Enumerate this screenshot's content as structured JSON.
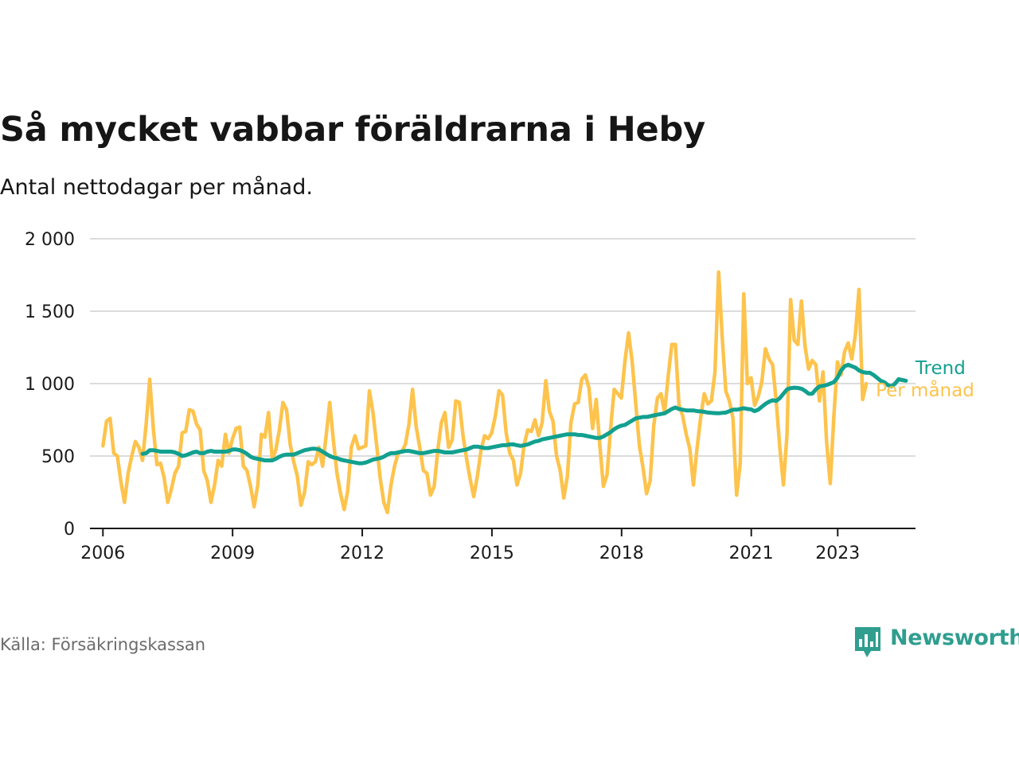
{
  "title": "Så mycket vabbar föräldrarna i Heby",
  "subtitle": "Antal nettodagar per månad.",
  "source": "Källa: Försäkringskassan",
  "brand": {
    "name": "Newsworthy",
    "icon": "newsworthy-chart-bubble-icon",
    "color": "#2f9e8f"
  },
  "colors": {
    "trend": "#12a08f",
    "monthly": "#fdc34c",
    "grid": "#dcdcdc",
    "axis": "#1a1a1a",
    "text": "#1a1a1a"
  },
  "chart_data": {
    "type": "line",
    "title": "Så mycket vabbar föräldrarna i Heby",
    "subtitle": "Antal nettodagar per månad.",
    "xlabel": "",
    "ylabel": "",
    "grid": true,
    "xlim": [
      2005.7,
      2024.8
    ],
    "ylim": [
      0,
      2000
    ],
    "yticks": [
      0,
      500,
      1000,
      1500,
      2000
    ],
    "ytick_labels": [
      "0",
      "500",
      "1 000",
      "1 500",
      "2 000"
    ],
    "xticks": [
      2006,
      2009,
      2012,
      2015,
      2018,
      2021,
      2023
    ],
    "xtick_labels": [
      "2006",
      "2009",
      "2012",
      "2015",
      "2018",
      "2021",
      "2023"
    ],
    "series": [
      {
        "name": "Per månad",
        "label": "Per månad",
        "color": "#fdc34c",
        "start": 2006.0,
        "step": 0.0833,
        "values": [
          570,
          740,
          760,
          520,
          500,
          320,
          180,
          380,
          500,
          600,
          560,
          470,
          720,
          1030,
          690,
          440,
          450,
          350,
          180,
          270,
          380,
          430,
          660,
          670,
          820,
          810,
          720,
          680,
          400,
          330,
          180,
          300,
          470,
          430,
          650,
          520,
          620,
          690,
          700,
          430,
          400,
          290,
          150,
          300,
          650,
          630,
          800,
          480,
          540,
          680,
          870,
          820,
          580,
          460,
          360,
          160,
          250,
          460,
          440,
          460,
          560,
          430,
          640,
          870,
          610,
          380,
          240,
          130,
          260,
          560,
          640,
          550,
          560,
          570,
          950,
          800,
          580,
          350,
          180,
          110,
          300,
          430,
          520,
          530,
          580,
          720,
          960,
          700,
          560,
          400,
          380,
          230,
          290,
          540,
          730,
          800,
          560,
          610,
          880,
          870,
          640,
          480,
          340,
          220,
          360,
          540,
          640,
          620,
          660,
          780,
          950,
          920,
          660,
          520,
          470,
          300,
          380,
          580,
          680,
          670,
          750,
          640,
          730,
          1020,
          810,
          740,
          500,
          400,
          210,
          360,
          730,
          860,
          870,
          1030,
          1060,
          970,
          690,
          890,
          580,
          290,
          370,
          690,
          960,
          930,
          900,
          1160,
          1350,
          1150,
          860,
          570,
          420,
          240,
          330,
          710,
          900,
          930,
          800,
          1050,
          1270,
          1270,
          850,
          780,
          650,
          550,
          300,
          550,
          760,
          930,
          860,
          880,
          1080,
          1770,
          1320,
          950,
          880,
          760,
          230,
          450,
          1620,
          1000,
          1040,
          850,
          910,
          1010,
          1240,
          1170,
          1130,
          880,
          560,
          300,
          650,
          1580,
          1300,
          1270,
          1570,
          1260,
          1100,
          1160,
          1130,
          880,
          1080,
          600,
          310,
          770,
          1150,
          1060,
          1220,
          1280,
          1170,
          1340,
          1650,
          890,
          1000
        ]
      },
      {
        "name": "Trend",
        "label": "Trend",
        "color": "#12a08f",
        "start": 2006.917,
        "step": 0.0833,
        "values": [
          515,
          520,
          540,
          540,
          535,
          530,
          530,
          530,
          530,
          525,
          515,
          500,
          505,
          515,
          525,
          530,
          520,
          520,
          530,
          535,
          530,
          530,
          530,
          530,
          535,
          545,
          545,
          540,
          530,
          515,
          495,
          485,
          480,
          475,
          470,
          470,
          470,
          480,
          495,
          505,
          510,
          510,
          510,
          520,
          530,
          540,
          545,
          550,
          550,
          545,
          530,
          515,
          500,
          490,
          485,
          475,
          470,
          465,
          460,
          455,
          450,
          450,
          455,
          465,
          475,
          480,
          485,
          495,
          510,
          520,
          520,
          525,
          530,
          535,
          535,
          530,
          525,
          520,
          520,
          525,
          530,
          535,
          535,
          530,
          525,
          525,
          525,
          530,
          535,
          540,
          545,
          555,
          565,
          565,
          560,
          555,
          555,
          560,
          565,
          570,
          575,
          575,
          580,
          580,
          575,
          570,
          575,
          580,
          590,
          600,
          605,
          615,
          620,
          625,
          630,
          635,
          640,
          645,
          650,
          650,
          650,
          645,
          645,
          640,
          635,
          630,
          625,
          625,
          635,
          650,
          665,
          685,
          700,
          710,
          715,
          730,
          745,
          760,
          765,
          770,
          770,
          775,
          780,
          785,
          790,
          795,
          810,
          825,
          835,
          825,
          820,
          815,
          815,
          815,
          810,
          808,
          805,
          800,
          798,
          796,
          795,
          798,
          800,
          810,
          820,
          820,
          825,
          830,
          825,
          822,
          810,
          820,
          840,
          860,
          875,
          885,
          880,
          900,
          930,
          960,
          968,
          972,
          970,
          965,
          950,
          930,
          930,
          960,
          980,
          985,
          990,
          1000,
          1010,
          1040,
          1090,
          1120,
          1130,
          1120,
          1110,
          1090,
          1080,
          1075,
          1075,
          1060,
          1040,
          1020,
          1010,
          990,
          980,
          1000,
          1030,
          1025,
          1020
        ]
      }
    ]
  }
}
